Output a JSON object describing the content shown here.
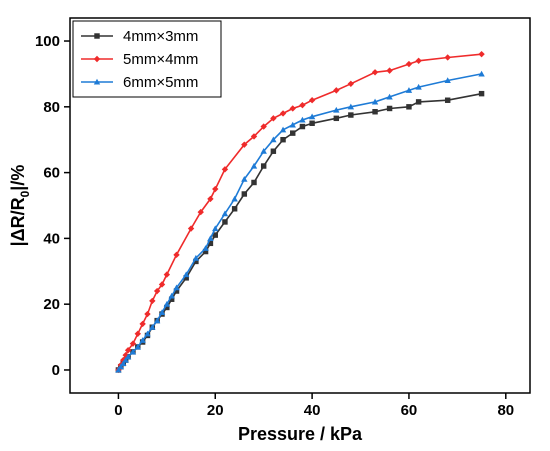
{
  "chart_data": {
    "type": "line",
    "title": "",
    "xlabel": "Pressure / kPa",
    "ylabel": "|ΔR/R",
    "ylabel_subscript": "0",
    "ylabel_suffix": "|/%",
    "xlim": [
      -10,
      85
    ],
    "ylim": [
      -7,
      107
    ],
    "xticks": [
      0,
      20,
      40,
      60,
      80
    ],
    "yticks": [
      0,
      20,
      40,
      60,
      80,
      100
    ],
    "grid": false,
    "legend_position": "top-left",
    "series": [
      {
        "name": "4mm×3mm",
        "color": "#333333",
        "marker": "square",
        "x": [
          0,
          0.5,
          1,
          1.5,
          2,
          3,
          4,
          5,
          6,
          7,
          8,
          9,
          10,
          11,
          12,
          14,
          16,
          18,
          19,
          20,
          22,
          24,
          26,
          28,
          30,
          32,
          34,
          36,
          38,
          40,
          45,
          48,
          53,
          56,
          60,
          62,
          68,
          75
        ],
        "y": [
          0,
          1,
          2,
          3,
          4,
          5.5,
          7,
          8.5,
          10.5,
          13,
          15,
          17,
          19,
          21.5,
          24,
          28,
          33,
          36,
          38.5,
          41,
          45,
          49,
          53.5,
          57,
          62,
          66.5,
          70,
          72,
          74,
          75,
          76.5,
          77.5,
          78.5,
          79.5,
          80,
          81.5,
          82,
          84
        ]
      },
      {
        "name": "5mm×4mm",
        "color": "#ef2b2b",
        "marker": "diamond",
        "x": [
          0,
          0.5,
          1,
          1.5,
          2,
          3,
          4,
          5,
          6,
          7,
          8,
          9,
          10,
          12,
          15,
          17,
          19,
          20,
          22,
          26,
          28,
          30,
          32,
          34,
          36,
          38,
          40,
          45,
          48,
          53,
          56,
          60,
          62,
          68,
          75
        ],
        "y": [
          0,
          1.5,
          3,
          4.5,
          6,
          8,
          11,
          14,
          17,
          21,
          24,
          26,
          29,
          35,
          43,
          48,
          52,
          55,
          61,
          68.5,
          71,
          74,
          76.5,
          78,
          79.5,
          80.5,
          82,
          85,
          87,
          90.5,
          91,
          93,
          94,
          95,
          96
        ]
      },
      {
        "name": "6mm×5mm",
        "color": "#1e7bd6",
        "marker": "triangle",
        "x": [
          0,
          0.5,
          1,
          1.5,
          2,
          3,
          4,
          5,
          6,
          7,
          8,
          9,
          10,
          11,
          12,
          14,
          16,
          18,
          19,
          20,
          22,
          24,
          26,
          28,
          30,
          32,
          34,
          36,
          38,
          40,
          45,
          48,
          53,
          56,
          60,
          62,
          68,
          75
        ],
        "y": [
          0,
          1,
          2,
          3,
          4,
          5.5,
          7,
          9,
          11,
          13,
          15,
          17.5,
          20,
          22.5,
          25,
          29,
          34,
          37,
          40,
          43,
          47.5,
          52,
          58,
          62,
          66.5,
          70,
          73,
          74.5,
          76,
          77,
          79,
          80,
          81.5,
          83,
          85,
          86,
          88,
          90
        ]
      }
    ]
  }
}
